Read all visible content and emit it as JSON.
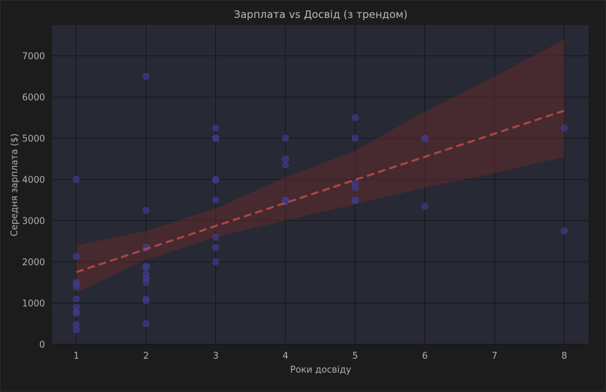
{
  "colors": {
    "figure_bg": "#1c1c1c",
    "axes_bg": "#272935",
    "point": "#3c3a8a",
    "point_edge": "#4d4aa8",
    "trend": "#b34a4a",
    "band": "#6e2b2b"
  },
  "chart_data": {
    "type": "scatter",
    "title": "Зарплата vs Досвід (з трендом)",
    "xlabel": "Роки досвіду",
    "ylabel": "Середня зарплата ($)",
    "xlim": [
      0.65,
      8.35
    ],
    "ylim": [
      0,
      7750
    ],
    "xticks": [
      1,
      2,
      3,
      4,
      5,
      6,
      7,
      8
    ],
    "yticks": [
      0,
      1000,
      2000,
      3000,
      4000,
      5000,
      6000,
      7000
    ],
    "grid": true,
    "points": {
      "x": [
        1,
        1,
        1,
        1,
        1,
        1,
        1,
        1,
        1,
        1,
        1,
        2,
        2,
        2,
        2,
        2,
        2,
        2,
        2,
        2,
        2,
        2,
        2,
        3,
        3,
        3,
        3,
        3,
        3,
        3,
        3,
        3,
        4,
        4,
        4,
        4,
        4,
        4,
        5,
        5,
        5,
        5,
        5,
        5,
        6,
        6,
        6,
        8,
        8
      ],
      "y": [
        4000,
        2130,
        1500,
        1450,
        1400,
        1100,
        900,
        780,
        750,
        480,
        350,
        6500,
        3250,
        2350,
        2330,
        1900,
        1860,
        1700,
        1600,
        1500,
        1100,
        1050,
        500,
        5250,
        5000,
        4000,
        3980,
        3500,
        2600,
        2350,
        2000,
        5000,
        5000,
        4500,
        4350,
        3500,
        3480,
        3460,
        5500,
        5000,
        3900,
        3800,
        3500,
        3480,
        5000,
        4990,
        3350,
        5250,
        2750
      ]
    },
    "trend": {
      "x": [
        1,
        8
      ],
      "y": [
        1750,
        5670
      ],
      "style": "dashed"
    },
    "confidence_band": {
      "x": [
        1,
        2,
        3,
        4,
        5,
        6,
        7,
        8
      ],
      "lower": [
        1250,
        2050,
        2600,
        3000,
        3400,
        3800,
        4150,
        4550
      ],
      "upper": [
        2400,
        2750,
        3300,
        4050,
        4700,
        5650,
        6500,
        7400
      ]
    }
  }
}
